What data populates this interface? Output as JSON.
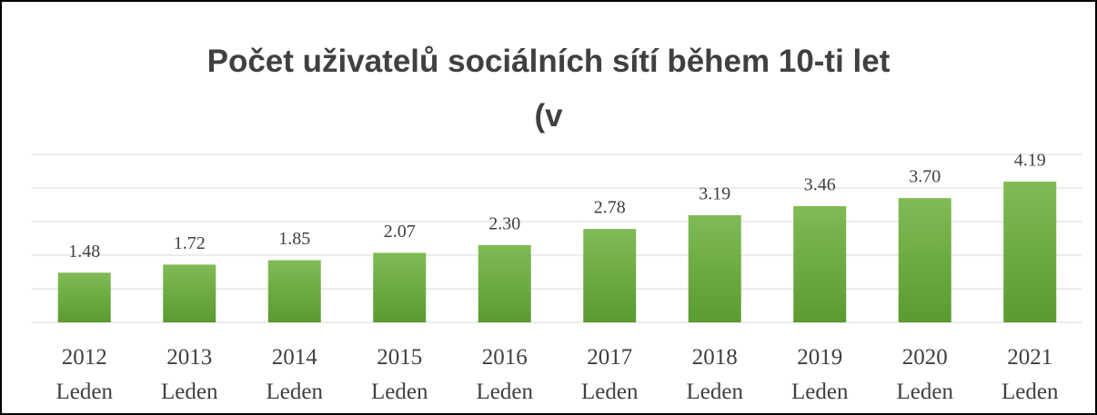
{
  "chart_data": {
    "type": "bar",
    "title": "Počet uživatelů sociálních sítí během 10-ti let (v",
    "categories": [
      "2012 Leden",
      "2013 Leden",
      "2014 Leden",
      "2015 Leden",
      "2016 Leden",
      "2017 Leden",
      "2018 Leden",
      "2019 Leden",
      "2020 Leden",
      "2021 Leden"
    ],
    "values": [
      1.48,
      1.72,
      1.85,
      2.07,
      2.3,
      2.78,
      3.19,
      3.46,
      3.7,
      4.19
    ],
    "value_labels": [
      "1.48",
      "1.72",
      "1.85",
      "2.07",
      "2.30",
      "2.78",
      "3.19",
      "3.46",
      "3.70",
      "4.19"
    ],
    "color": "#6aaa3e",
    "ylim": [
      0,
      5
    ],
    "yticks": [
      0,
      1,
      2,
      3,
      4,
      5
    ],
    "grid": true
  }
}
